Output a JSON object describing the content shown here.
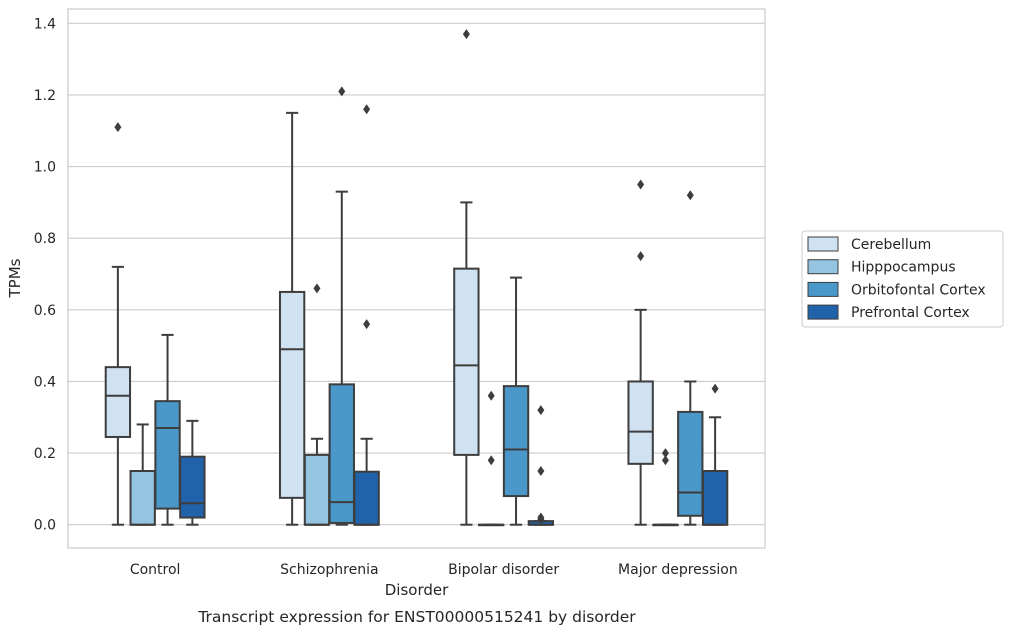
{
  "caption": "Transcript expression for ENST00000515241 by disorder",
  "chart_data": {
    "type": "box",
    "xlabel": "Disorder",
    "ylabel": "TPMs",
    "ylim": [
      -0.065,
      1.44
    ],
    "yticks": [
      0.0,
      0.2,
      0.4,
      0.6,
      0.8,
      1.0,
      1.2,
      1.4
    ],
    "ytick_labels": [
      "0.0",
      "0.2",
      "0.4",
      "0.6",
      "0.8",
      "1.0",
      "1.2",
      "1.4"
    ],
    "grid": true,
    "legend_position": "right",
    "categories": [
      "Control",
      "Schizophrenia",
      "Bipolar disorder",
      "Major depression"
    ],
    "series": [
      {
        "name": "Cerebellum",
        "color": "#d0e1f2",
        "boxes": [
          {
            "whislo": 0.0,
            "q1": 0.245,
            "med": 0.36,
            "q3": 0.44,
            "whishi": 0.72,
            "fliers": [
              1.11
            ]
          },
          {
            "whislo": 0.0,
            "q1": 0.075,
            "med": 0.49,
            "q3": 0.65,
            "whishi": 1.15,
            "fliers": []
          },
          {
            "whislo": 0.0,
            "q1": 0.195,
            "med": 0.445,
            "q3": 0.715,
            "whishi": 0.9,
            "fliers": [
              1.37
            ]
          },
          {
            "whislo": 0.0,
            "q1": 0.17,
            "med": 0.26,
            "q3": 0.4,
            "whishi": 0.6,
            "fliers": [
              0.75,
              0.95
            ]
          }
        ]
      },
      {
        "name": "Hipppocampus",
        "color": "#94c4df",
        "boxes": [
          {
            "whislo": 0.0,
            "q1": 0.0,
            "med": 0.0,
            "q3": 0.15,
            "whishi": 0.28,
            "fliers": []
          },
          {
            "whislo": 0.0,
            "q1": 0.0,
            "med": 0.0,
            "q3": 0.195,
            "whishi": 0.24,
            "fliers": [
              0.66
            ]
          },
          {
            "whislo": 0.0,
            "q1": 0.0,
            "med": 0.0,
            "q3": 0.0,
            "whishi": 0.0,
            "fliers": [
              0.18,
              0.36
            ]
          },
          {
            "whislo": 0.0,
            "q1": 0.0,
            "med": 0.0,
            "q3": 0.0,
            "whishi": 0.0,
            "fliers": [
              0.18,
              0.2
            ]
          }
        ]
      },
      {
        "name": "Orbitofontal Cortex",
        "color": "#4a98c9",
        "boxes": [
          {
            "whislo": 0.0,
            "q1": 0.045,
            "med": 0.27,
            "q3": 0.345,
            "whishi": 0.53,
            "fliers": []
          },
          {
            "whislo": 0.0,
            "q1": 0.005,
            "med": 0.063,
            "q3": 0.392,
            "whishi": 0.93,
            "fliers": [
              1.21
            ]
          },
          {
            "whislo": 0.0,
            "q1": 0.08,
            "med": 0.21,
            "q3": 0.387,
            "whishi": 0.69,
            "fliers": []
          },
          {
            "whislo": 0.0,
            "q1": 0.025,
            "med": 0.09,
            "q3": 0.315,
            "whishi": 0.4,
            "fliers": [
              0.92
            ]
          }
        ]
      },
      {
        "name": "Prefrontal Cortex",
        "color": "#2163aa",
        "boxes": [
          {
            "whislo": 0.0,
            "q1": 0.02,
            "med": 0.06,
            "q3": 0.19,
            "whishi": 0.29,
            "fliers": []
          },
          {
            "whislo": 0.0,
            "q1": 0.0,
            "med": 0.0,
            "q3": 0.148,
            "whishi": 0.24,
            "fliers": [
              0.56,
              1.16
            ]
          },
          {
            "whislo": 0.0,
            "q1": 0.0,
            "med": 0.0,
            "q3": 0.01,
            "whishi": 0.01,
            "fliers": [
              0.015,
              0.02,
              0.15,
              0.32
            ]
          },
          {
            "whislo": 0.0,
            "q1": 0.0,
            "med": 0.0,
            "q3": 0.15,
            "whishi": 0.3,
            "fliers": [
              0.38
            ]
          }
        ]
      }
    ]
  }
}
